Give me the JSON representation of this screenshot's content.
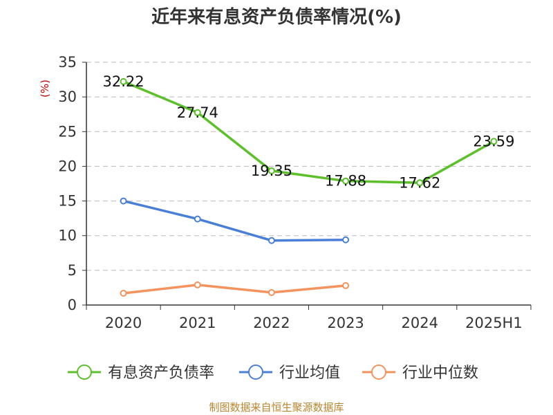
{
  "chart_data": {
    "type": "line",
    "title": "近年来有息资产负债率情况(%)",
    "unit_label": "(%)",
    "categories": [
      "2020",
      "2021",
      "2022",
      "2023",
      "2024",
      "2025H1"
    ],
    "ylim": [
      0,
      35
    ],
    "yticks": [
      0,
      5,
      10,
      15,
      20,
      25,
      30,
      35
    ],
    "grid": true,
    "legend_position": "bottom",
    "series": [
      {
        "name": "有息资产负债率",
        "color": "#5cc02b",
        "values": [
          32.22,
          27.74,
          19.35,
          17.88,
          17.62,
          23.59
        ],
        "labels": [
          "32.22",
          "27.74",
          "19.35",
          "17.88",
          "17.62",
          "23.59"
        ]
      },
      {
        "name": "行业均值",
        "color": "#4a7fd8",
        "values": [
          15.0,
          12.4,
          9.3,
          9.4,
          null,
          null
        ]
      },
      {
        "name": "行业中位数",
        "color": "#f4935e",
        "values": [
          1.7,
          2.9,
          1.8,
          2.8,
          null,
          null
        ]
      }
    ],
    "source": "制图数据来自恒生聚源数据库"
  }
}
